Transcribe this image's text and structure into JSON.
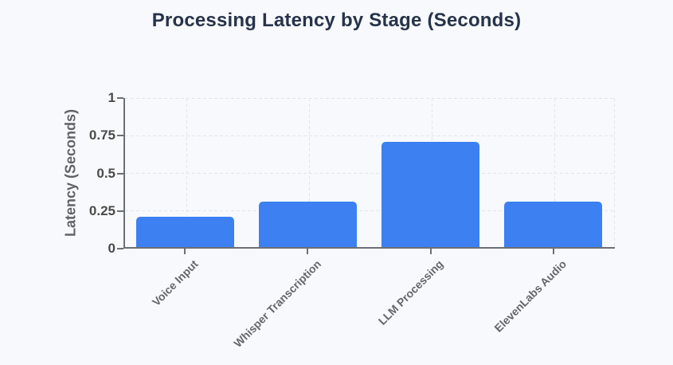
{
  "page": {
    "background": "#f8f9fc"
  },
  "chart_data": {
    "type": "bar",
    "title": "Processing Latency by Stage (Seconds)",
    "ylabel": "Latency (Seconds)",
    "xlabel": "",
    "categories": [
      "Voice Input",
      "Whisper Transcription",
      "LLM Processing",
      "ElevenLabs Audio"
    ],
    "values": [
      0.2,
      0.3,
      0.7,
      0.3
    ],
    "yticks": [
      0,
      0.25,
      0.5,
      0.75,
      1
    ],
    "ylim": [
      0,
      1
    ],
    "grid": "dashed, at y-ticks and category centers plus right boundary",
    "legend_position": "none",
    "colors": {
      "bar": "#3c80f2",
      "title_text": "#27334a",
      "axis_line": "#6b6f76",
      "ytick_text": "#4a4a4a",
      "xtick_text": "#63676d",
      "ylabel_text": "#5f6368",
      "gridline": "#e3e5ea",
      "background": "#f8f9fc"
    }
  }
}
